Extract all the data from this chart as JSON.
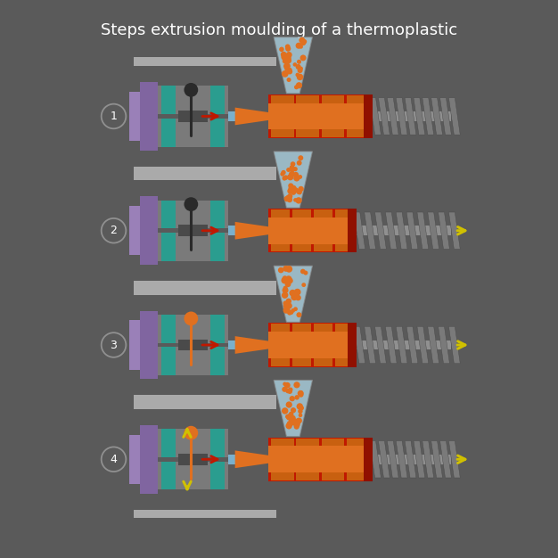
{
  "title": "Steps extrusion moulding of a thermoplastic",
  "bg": "#5a5a5a",
  "title_color": "#ffffff",
  "colors": {
    "purple": "#8065a0",
    "teal": "#2a9d8f",
    "gray_mold": "#7a7a7a",
    "gray_rail": "#aaaaaa",
    "gray_screw": "#909090",
    "gray_dark": "#4a4a4a",
    "orange": "#e07020",
    "orange2": "#c86010",
    "red": "#c01800",
    "red2": "#901000",
    "blue_hop": "#b0d8e8",
    "yellow": "#d0c000",
    "white": "#ffffff",
    "border_circle": "#909090",
    "inner_blue": "#7ab0cc",
    "screw_flight": "#707070"
  }
}
